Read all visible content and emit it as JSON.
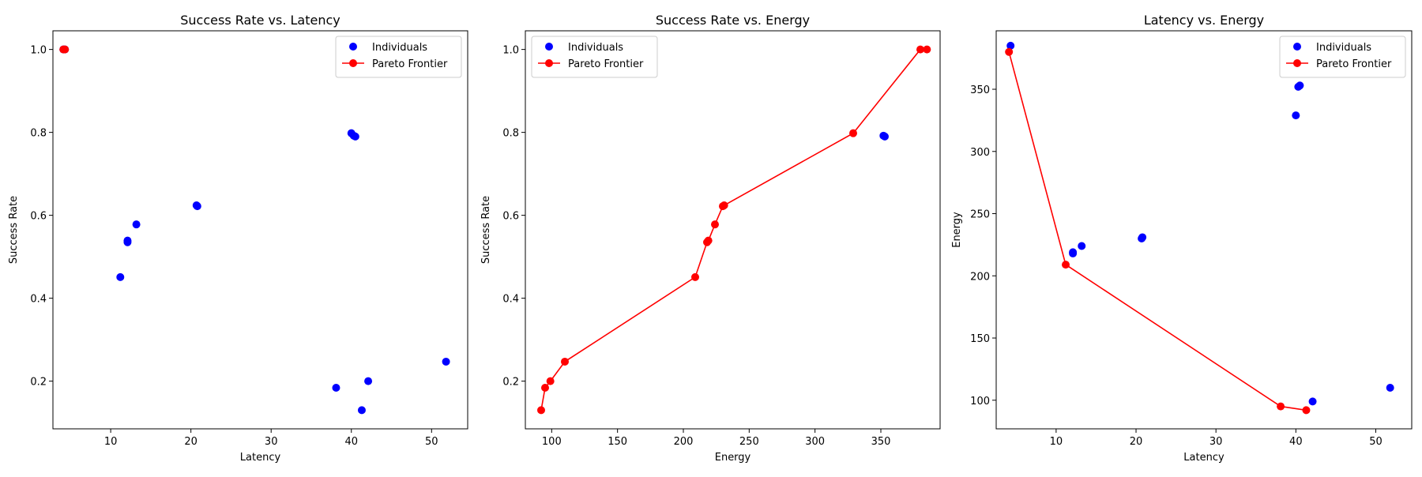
{
  "chart_data": [
    {
      "type": "scatter",
      "title": "Success Rate vs. Latency",
      "xlabel": "Latency",
      "ylabel": "Success Rate",
      "xlim": [
        2.8,
        54.5
      ],
      "ylim": [
        0.085,
        1.045
      ],
      "xticks": [
        10,
        20,
        30,
        40,
        50
      ],
      "yticks": [
        0.2,
        0.4,
        0.6,
        0.8,
        1.0
      ],
      "ytick_decimals": 1,
      "grid": false,
      "legend": {
        "position": "top-right",
        "entries": [
          "Individuals",
          "Pareto Frontier"
        ]
      },
      "series": [
        {
          "name": "Individuals",
          "kind": "scatter",
          "color": "#0000ff",
          "points": [
            [
              4.3,
              1.0
            ],
            [
              4.1,
              1.0
            ],
            [
              11.2,
              0.451
            ],
            [
              12.1,
              0.535
            ],
            [
              12.1,
              0.539
            ],
            [
              13.2,
              0.578
            ],
            [
              20.7,
              0.624
            ],
            [
              20.8,
              0.622
            ],
            [
              40.0,
              0.798
            ],
            [
              40.5,
              0.79
            ],
            [
              40.3,
              0.792
            ],
            [
              38.1,
              0.184
            ],
            [
              41.3,
              0.13
            ],
            [
              42.1,
              0.2
            ],
            [
              51.8,
              0.247
            ]
          ]
        },
        {
          "name": "Pareto Frontier",
          "kind": "line",
          "color": "#ff0000",
          "points": [
            [
              4.1,
              1.0
            ],
            [
              4.3,
              1.0
            ]
          ]
        }
      ]
    },
    {
      "type": "line",
      "title": "Success Rate vs. Energy",
      "xlabel": "Energy",
      "ylabel": "Success Rate",
      "xlim": [
        80,
        395
      ],
      "ylim": [
        0.085,
        1.045
      ],
      "xticks": [
        100,
        150,
        200,
        250,
        300,
        350
      ],
      "yticks": [
        0.2,
        0.4,
        0.6,
        0.8,
        1.0
      ],
      "ytick_decimals": 1,
      "grid": false,
      "legend": {
        "position": "top-left",
        "entries": [
          "Individuals",
          "Pareto Frontier"
        ]
      },
      "series": [
        {
          "name": "Individuals",
          "kind": "scatter",
          "color": "#0000ff",
          "points": [
            [
              353,
              0.79
            ],
            [
              352,
              0.792
            ]
          ]
        },
        {
          "name": "Pareto Frontier",
          "kind": "line",
          "color": "#ff0000",
          "points": [
            [
              92,
              0.13
            ],
            [
              95,
              0.184
            ],
            [
              99,
              0.2
            ],
            [
              110,
              0.247
            ],
            [
              209,
              0.451
            ],
            [
              218,
              0.535
            ],
            [
              219,
              0.539
            ],
            [
              224,
              0.578
            ],
            [
              230,
              0.622
            ],
            [
              231,
              0.624
            ],
            [
              329,
              0.798
            ],
            [
              380,
              1.0
            ],
            [
              385,
              1.0
            ]
          ]
        }
      ]
    },
    {
      "type": "line",
      "title": "Latency vs. Energy",
      "xlabel": "Latency",
      "ylabel": "Energy",
      "xlim": [
        2.5,
        54.5
      ],
      "ylim": [
        77,
        397
      ],
      "xticks": [
        10,
        20,
        30,
        40,
        50
      ],
      "yticks": [
        100,
        150,
        200,
        250,
        300,
        350
      ],
      "ytick_decimals": 0,
      "grid": false,
      "legend": {
        "position": "top-right",
        "entries": [
          "Individuals",
          "Pareto Frontier"
        ]
      },
      "series": [
        {
          "name": "Individuals",
          "kind": "scatter",
          "color": "#0000ff",
          "points": [
            [
              4.3,
              385
            ],
            [
              12.1,
              218
            ],
            [
              12.1,
              219
            ],
            [
              13.2,
              224
            ],
            [
              20.7,
              230
            ],
            [
              20.8,
              231
            ],
            [
              40.0,
              329
            ],
            [
              40.5,
              353
            ],
            [
              40.3,
              352
            ],
            [
              42.1,
              99
            ],
            [
              51.8,
              110
            ]
          ]
        },
        {
          "name": "Pareto Frontier",
          "kind": "line",
          "color": "#ff0000",
          "points": [
            [
              4.1,
              380
            ],
            [
              11.2,
              209
            ],
            [
              38.1,
              95
            ],
            [
              41.3,
              92
            ]
          ]
        }
      ]
    }
  ]
}
